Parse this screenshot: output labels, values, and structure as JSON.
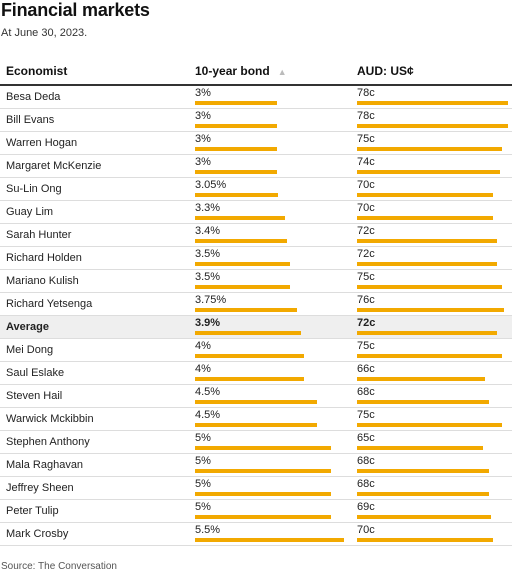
{
  "title": "Financial markets",
  "subtitle": "At June 30, 2023.",
  "columns": [
    "Economist",
    "10-year bond",
    "AUD: US¢"
  ],
  "sort_indicator": "▲",
  "rows": [
    {
      "name": "Besa Deda",
      "bond": "3%",
      "bond_value": 3,
      "aud": "78c",
      "aud_value": 78
    },
    {
      "name": "Bill Evans",
      "bond": "3%",
      "bond_value": 3,
      "aud": "78c",
      "aud_value": 78
    },
    {
      "name": "Warren Hogan",
      "bond": "3%",
      "bond_value": 3,
      "aud": "75c",
      "aud_value": 75
    },
    {
      "name": "Margaret McKenzie",
      "bond": "3%",
      "bond_value": 3,
      "aud": "74c",
      "aud_value": 74
    },
    {
      "name": "Su-Lin Ong",
      "bond": "3.05%",
      "bond_value": 3.05,
      "aud": "70c",
      "aud_value": 70
    },
    {
      "name": "Guay Lim",
      "bond": "3.3%",
      "bond_value": 3.3,
      "aud": "70c",
      "aud_value": 70
    },
    {
      "name": "Sarah Hunter",
      "bond": "3.4%",
      "bond_value": 3.4,
      "aud": "72c",
      "aud_value": 72
    },
    {
      "name": "Richard Holden",
      "bond": "3.5%",
      "bond_value": 3.5,
      "aud": "72c",
      "aud_value": 72
    },
    {
      "name": "Mariano Kulish",
      "bond": "3.5%",
      "bond_value": 3.5,
      "aud": "75c",
      "aud_value": 75
    },
    {
      "name": "Richard Yetsenga",
      "bond": "3.75%",
      "bond_value": 3.75,
      "aud": "76c",
      "aud_value": 76
    },
    {
      "name": "Average",
      "bond": "3.9%",
      "bond_value": 3.9,
      "aud": "72c",
      "aud_value": 72,
      "highlight": true
    },
    {
      "name": "Mei Dong",
      "bond": "4%",
      "bond_value": 4,
      "aud": "75c",
      "aud_value": 75
    },
    {
      "name": "Saul Eslake",
      "bond": "4%",
      "bond_value": 4,
      "aud": "66c",
      "aud_value": 66
    },
    {
      "name": "Steven Hail",
      "bond": "4.5%",
      "bond_value": 4.5,
      "aud": "68c",
      "aud_value": 68
    },
    {
      "name": "Warwick Mckibbin",
      "bond": "4.5%",
      "bond_value": 4.5,
      "aud": "75c",
      "aud_value": 75
    },
    {
      "name": "Stephen Anthony",
      "bond": "5%",
      "bond_value": 5,
      "aud": "65c",
      "aud_value": 65
    },
    {
      "name": "Mala Raghavan",
      "bond": "5%",
      "bond_value": 5,
      "aud": "68c",
      "aud_value": 68
    },
    {
      "name": "Jeffrey Sheen",
      "bond": "5%",
      "bond_value": 5,
      "aud": "68c",
      "aud_value": 68
    },
    {
      "name": "Peter Tulip",
      "bond": "5%",
      "bond_value": 5,
      "aud": "69c",
      "aud_value": 69
    },
    {
      "name": "Mark Crosby",
      "bond": "5.5%",
      "bond_value": 5.5,
      "aud": "70c",
      "aud_value": 70
    }
  ],
  "bar_color": "#f2a900",
  "source": "Source: The Conversation"
}
